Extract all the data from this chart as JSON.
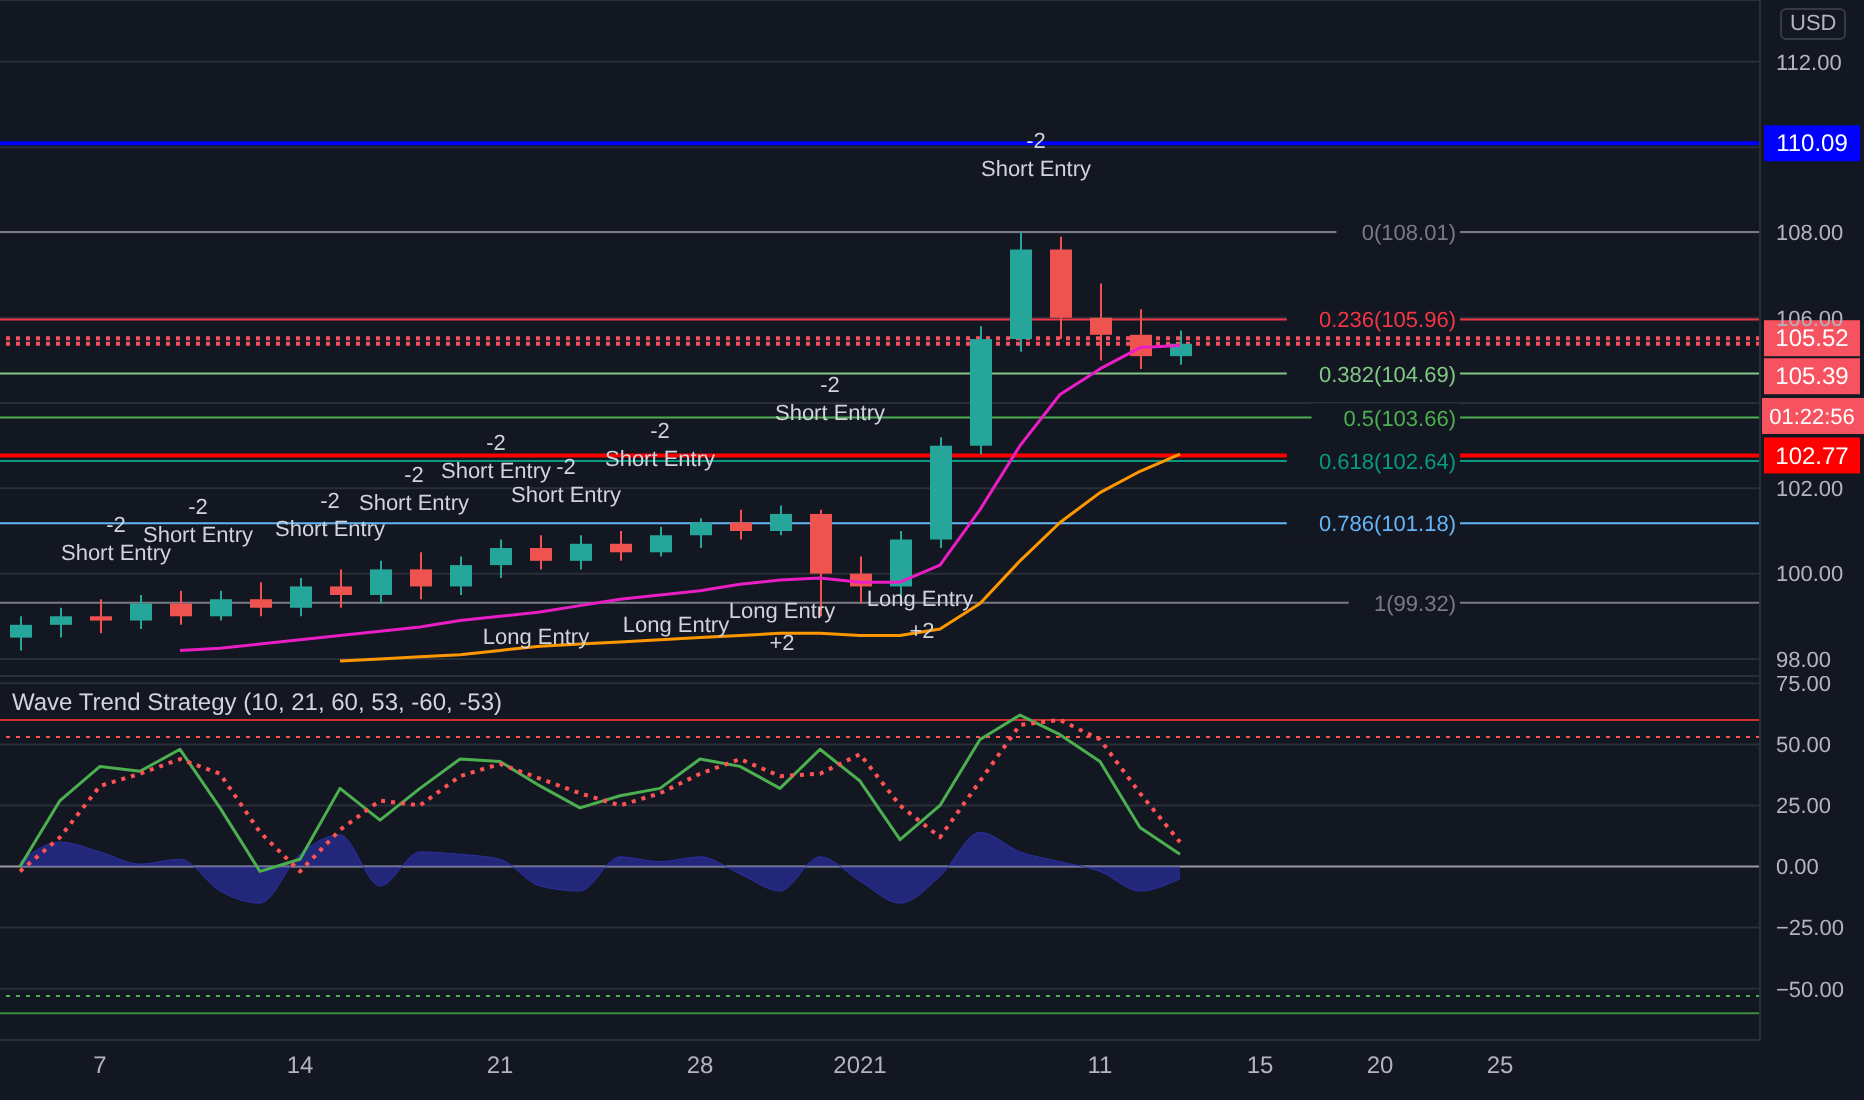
{
  "chart_data": [
    {
      "type": "candlestick",
      "ylabel": "USD",
      "categories": [
        null,
        null,
        "7",
        null,
        null,
        null,
        null,
        "14",
        null,
        null,
        null,
        null,
        "21",
        null,
        null,
        null,
        null,
        "28",
        null,
        null,
        null,
        "2021",
        null,
        null,
        null,
        null,
        null,
        "11",
        null,
        null,
        null,
        "15",
        null,
        null,
        "20",
        null,
        null,
        "25",
        null,
        null,
        null,
        null,
        null,
        null
      ],
      "ohlc": [
        [
          98.5,
          99.0,
          98.2,
          98.8
        ],
        [
          98.8,
          99.2,
          98.5,
          99.0
        ],
        [
          99.0,
          99.4,
          98.6,
          98.9
        ],
        [
          98.9,
          99.5,
          98.7,
          99.3
        ],
        [
          99.3,
          99.6,
          98.8,
          99.0
        ],
        [
          99.0,
          99.6,
          98.9,
          99.4
        ],
        [
          99.4,
          99.8,
          99.0,
          99.2
        ],
        [
          99.2,
          99.9,
          99.0,
          99.7
        ],
        [
          99.7,
          100.1,
          99.2,
          99.5
        ],
        [
          99.5,
          100.3,
          99.3,
          100.1
        ],
        [
          100.1,
          100.5,
          99.4,
          99.7
        ],
        [
          99.7,
          100.4,
          99.5,
          100.2
        ],
        [
          100.2,
          100.8,
          99.9,
          100.6
        ],
        [
          100.6,
          100.9,
          100.1,
          100.3
        ],
        [
          100.3,
          100.9,
          100.1,
          100.7
        ],
        [
          100.7,
          101.0,
          100.3,
          100.5
        ],
        [
          100.5,
          101.1,
          100.4,
          100.9
        ],
        [
          100.9,
          101.3,
          100.6,
          101.2
        ],
        [
          101.2,
          101.5,
          100.8,
          101.0
        ],
        [
          101.0,
          101.6,
          100.9,
          101.4
        ],
        [
          101.4,
          101.5,
          99.0,
          100.0
        ],
        [
          100.0,
          100.4,
          99.3,
          99.7
        ],
        [
          99.7,
          101.0,
          99.4,
          100.8
        ],
        [
          100.8,
          103.2,
          100.6,
          103.0
        ],
        [
          103.0,
          105.8,
          102.8,
          105.5
        ],
        [
          105.5,
          108.01,
          105.2,
          107.6
        ],
        [
          107.6,
          107.9,
          105.5,
          106.0
        ],
        [
          106.0,
          106.8,
          105.0,
          105.6
        ],
        [
          105.6,
          106.2,
          104.8,
          105.1
        ],
        [
          105.1,
          105.7,
          104.9,
          105.39
        ],
        null,
        null,
        null,
        null,
        null,
        null,
        null,
        null,
        null,
        null,
        null,
        null,
        null,
        null
      ],
      "colors": [
        "#26a69a",
        "#26a69a",
        "#ef5350",
        "#26a69a",
        "#ef5350",
        "#26a69a",
        "#ef5350",
        "#26a69a",
        "#ef5350",
        "#26a69a",
        "#ef5350",
        "#26a69a",
        "#26a69a",
        "#ef5350",
        "#26a69a",
        "#ef5350",
        "#26a69a",
        "#26a69a",
        "#ef5350",
        "#26a69a",
        "#ef5350",
        "#ef5350",
        "#26a69a",
        "#26a69a",
        "#26a69a",
        "#26a69a",
        "#ef5350",
        "#ef5350",
        "#ef5350",
        "#26a69a",
        null,
        null,
        null,
        null,
        null,
        null,
        null,
        null,
        null,
        null,
        null,
        null,
        null,
        null
      ],
      "series": [
        {
          "type": "line",
          "color": "#e91ec4",
          "values": [
            null,
            null,
            null,
            null,
            98.2,
            98.25,
            98.35,
            98.45,
            98.55,
            98.65,
            98.75,
            98.9,
            99.0,
            99.1,
            99.25,
            99.4,
            99.5,
            99.6,
            99.75,
            99.85,
            99.9,
            99.8,
            99.8,
            100.2,
            101.5,
            103.0,
            104.2,
            104.8,
            105.3,
            105.35,
            null,
            null,
            null,
            null,
            null,
            null,
            null,
            null,
            null,
            null,
            null,
            null,
            null,
            null
          ]
        },
        {
          "type": "line",
          "color": "#ff9800",
          "values": [
            null,
            null,
            null,
            null,
            null,
            null,
            null,
            null,
            97.95,
            98.0,
            98.05,
            98.1,
            98.2,
            98.3,
            98.35,
            98.4,
            98.45,
            98.5,
            98.55,
            98.6,
            98.6,
            98.55,
            98.55,
            98.7,
            99.3,
            100.3,
            101.2,
            101.9,
            102.4,
            102.8,
            null,
            null,
            null,
            null,
            null,
            null,
            null,
            null,
            null,
            null,
            null,
            null,
            null,
            null
          ]
        }
      ],
      "ylim": [
        97.6,
        113.45
      ],
      "yticks": [
        {
          "value": 98,
          "label": "98.00"
        },
        {
          "value": 100,
          "label": "100.00"
        },
        {
          "value": 102,
          "label": "102.00"
        },
        {
          "value": 104,
          "label": null
        },
        {
          "value": 106,
          "label": "106.00"
        },
        {
          "value": 108,
          "label": "108.00"
        },
        {
          "value": 110,
          "label": null
        },
        {
          "value": 112,
          "label": "112.00"
        }
      ],
      "grid": "y",
      "tick_labels": "y",
      "ref_lines": [
        {
          "axis": "y",
          "value": 110.09,
          "label": "110.09",
          "color": "#0000ff"
        },
        {
          "axis": "y",
          "value": 105.52,
          "label": "105.52",
          "color": "#f7525f",
          "line_style": "dotted"
        },
        {
          "axis": "y",
          "value": 105.39,
          "label": "105.39",
          "color": "#f7525f",
          "line_style": "dotted"
        },
        {
          "axis": "y",
          "value": 102.77,
          "label": "102.77",
          "color": "#ff0000"
        },
        {
          "axis": "y",
          "value": 108.01,
          "label": "0(108.01)",
          "color": "#787b86"
        },
        {
          "axis": "y",
          "value": 105.96,
          "label": "0.236(105.96)",
          "color": "#f23645"
        },
        {
          "axis": "y",
          "value": 104.69,
          "label": "0.382(104.69)",
          "color": "#81c784"
        },
        {
          "axis": "y",
          "value": 103.66,
          "label": "0.5(103.66)",
          "color": "#4caf50"
        },
        {
          "axis": "y",
          "value": 102.64,
          "label": "0.618(102.64)",
          "color": "#089981"
        },
        {
          "axis": "y",
          "value": 101.18,
          "label": "0.786(101.18)",
          "color": "#64b5f6"
        },
        {
          "axis": "y",
          "value": 99.32,
          "label": "1(99.32)",
          "color": "#787b86"
        }
      ],
      "annotations": [
        "-2",
        "Short Entry",
        "-2",
        "Short Entry",
        "-2",
        "Short Entry",
        "-2",
        "Short Entry",
        "-2",
        "Short Entry",
        "-2",
        "Short Entry",
        "-2",
        "Short Entry",
        "-2",
        "Short Entry",
        "-2",
        "Short Entry",
        "Long Entry",
        "Long Entry",
        "Long Entry",
        "Long Entry",
        "+2",
        "+2",
        "01:22:56"
      ]
    },
    {
      "type": "line",
      "title": "Wave Trend Strategy (10, 21, 60, 53, -60, -53)",
      "categories": [
        null,
        null,
        "7",
        null,
        null,
        null,
        null,
        "14",
        null,
        null,
        null,
        null,
        "21",
        null,
        null,
        null,
        null,
        "28",
        null,
        null,
        null,
        "2021",
        null,
        null,
        null,
        null,
        null,
        "11",
        null,
        null,
        null,
        "15",
        null,
        null,
        "20",
        null,
        null,
        "25",
        null,
        null,
        null,
        null,
        null,
        null
      ],
      "series": [
        {
          "type": "area",
          "color": "#2a2fa0",
          "values": [
            2,
            10,
            6,
            1,
            3,
            -10,
            -15,
            5,
            13,
            -8,
            6,
            5,
            3,
            -8,
            -10,
            4,
            2,
            4,
            -3,
            -10,
            4,
            -6,
            -15,
            -4,
            14,
            6,
            2,
            -2,
            -10,
            -5,
            null,
            null,
            null,
            null,
            null,
            null,
            null,
            null,
            null,
            null,
            null,
            null,
            null,
            null
          ]
        },
        {
          "type": "line",
          "color": "#4caf50",
          "values": [
            0,
            27,
            41,
            39,
            48,
            24,
            -2,
            3,
            32,
            19,
            32,
            44,
            43,
            33,
            24,
            29,
            32,
            44,
            41,
            32,
            48,
            35,
            11,
            25,
            52,
            62,
            54,
            43,
            16,
            5,
            null,
            null,
            null,
            null,
            null,
            null,
            null,
            null,
            null,
            null,
            null,
            null,
            null,
            null
          ]
        },
        {
          "type": "line",
          "color": "#ff5252",
          "line_style": "dotted",
          "values": [
            -2,
            12,
            33,
            38,
            44,
            38,
            14,
            -2,
            15,
            27,
            25,
            37,
            42,
            36,
            30,
            25,
            30,
            38,
            44,
            37,
            38,
            46,
            25,
            12,
            35,
            58,
            60,
            52,
            30,
            10,
            null,
            null,
            null,
            null,
            null,
            null,
            null,
            null,
            null,
            null,
            null,
            null,
            null,
            null
          ]
        }
      ],
      "ylim": [
        -71,
        78
      ],
      "yticks": [
        {
          "value": 75,
          "label": "75.00"
        },
        {
          "value": 50,
          "label": "50.00"
        },
        {
          "value": 25,
          "label": "25.00"
        },
        {
          "value": 0,
          "label": "0.00"
        },
        {
          "value": -25,
          "label": "−25.00"
        },
        {
          "value": -50,
          "label": "−50.00"
        }
      ],
      "grid": "y",
      "ref_lines": [
        {
          "axis": "y",
          "value": 60,
          "color": "#d32f2f"
        },
        {
          "axis": "y",
          "value": 53,
          "color": "#ff5252",
          "line_style": "dotted"
        },
        {
          "axis": "y",
          "value": 0,
          "color": "#9598a1"
        },
        {
          "axis": "y",
          "value": -53,
          "color": "#4caf50",
          "line_style": "dotted"
        },
        {
          "axis": "y",
          "value": -60,
          "color": "#388e3c"
        }
      ]
    }
  ]
}
